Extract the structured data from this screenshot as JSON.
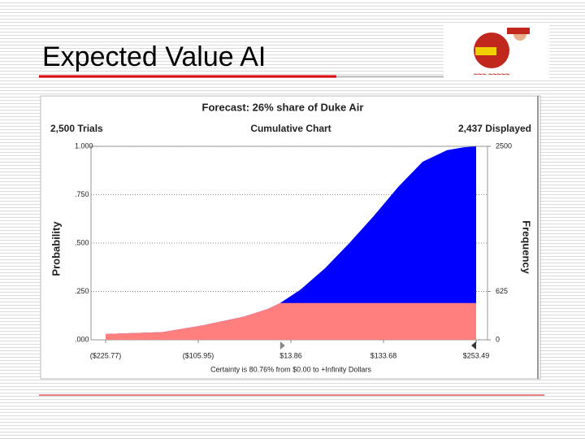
{
  "slide_title": "Expected Value AI",
  "chart_data": {
    "type": "area",
    "title": "Forecast: 26% share of Duke Air",
    "trials": "2,500 Trials",
    "subtitle": "Cumulative Chart",
    "displayed": "2,437 Displayed",
    "y_label": "Probability",
    "y2_label": "Frequency",
    "footer": "Certainty is 80.76% from $0.00 to +Infinity Dollars",
    "certainty_from": 0,
    "x": [
      -225.77,
      -152.2,
      -99.6,
      -47.1,
      -15.6,
      0,
      26.5,
      58.0,
      89.5,
      121.1,
      152.6,
      184.2,
      215.7,
      236.7,
      253.49
    ],
    "values": [
      0.03,
      0.04,
      0.075,
      0.12,
      0.16,
      0.19,
      0.26,
      0.37,
      0.5,
      0.64,
      0.79,
      0.92,
      0.98,
      0.995,
      1.0
    ],
    "color": "#0000ff",
    "below_color": "#ff7f7f",
    "xlim": [
      -225.77,
      253.49
    ],
    "xticks": [
      {
        "value": -225.77,
        "label": "($225.77)"
      },
      {
        "value": -105.95,
        "label": "($105.95)"
      },
      {
        "value": 13.86,
        "label": "$13.86"
      },
      {
        "value": 133.68,
        "label": "$133.68"
      },
      {
        "value": 253.49,
        "label": "$253.49"
      }
    ],
    "ylim": [
      0,
      1
    ],
    "yticks": [
      {
        "value": 0,
        "label": ".000"
      },
      {
        "value": 0.25,
        "label": ".250"
      },
      {
        "value": 0.5,
        "label": ".500"
      },
      {
        "value": 0.75,
        "label": ".750"
      },
      {
        "value": 1,
        "label": "1.000"
      }
    ],
    "y2lim": [
      0,
      2500
    ],
    "y2ticks": [
      0,
      625,
      2500
    ],
    "grid": true
  }
}
